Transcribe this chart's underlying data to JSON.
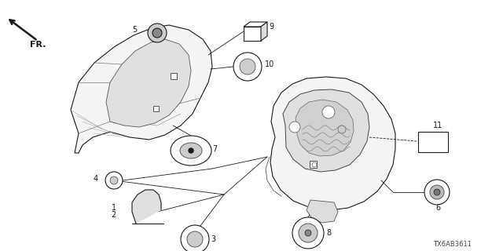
{
  "bg_color": "#ffffff",
  "diagram_code": "TX6AB3611",
  "lc": "#1a1a1a",
  "gray": "#888888",
  "lgray": "#cccccc",
  "lw": 0.8
}
